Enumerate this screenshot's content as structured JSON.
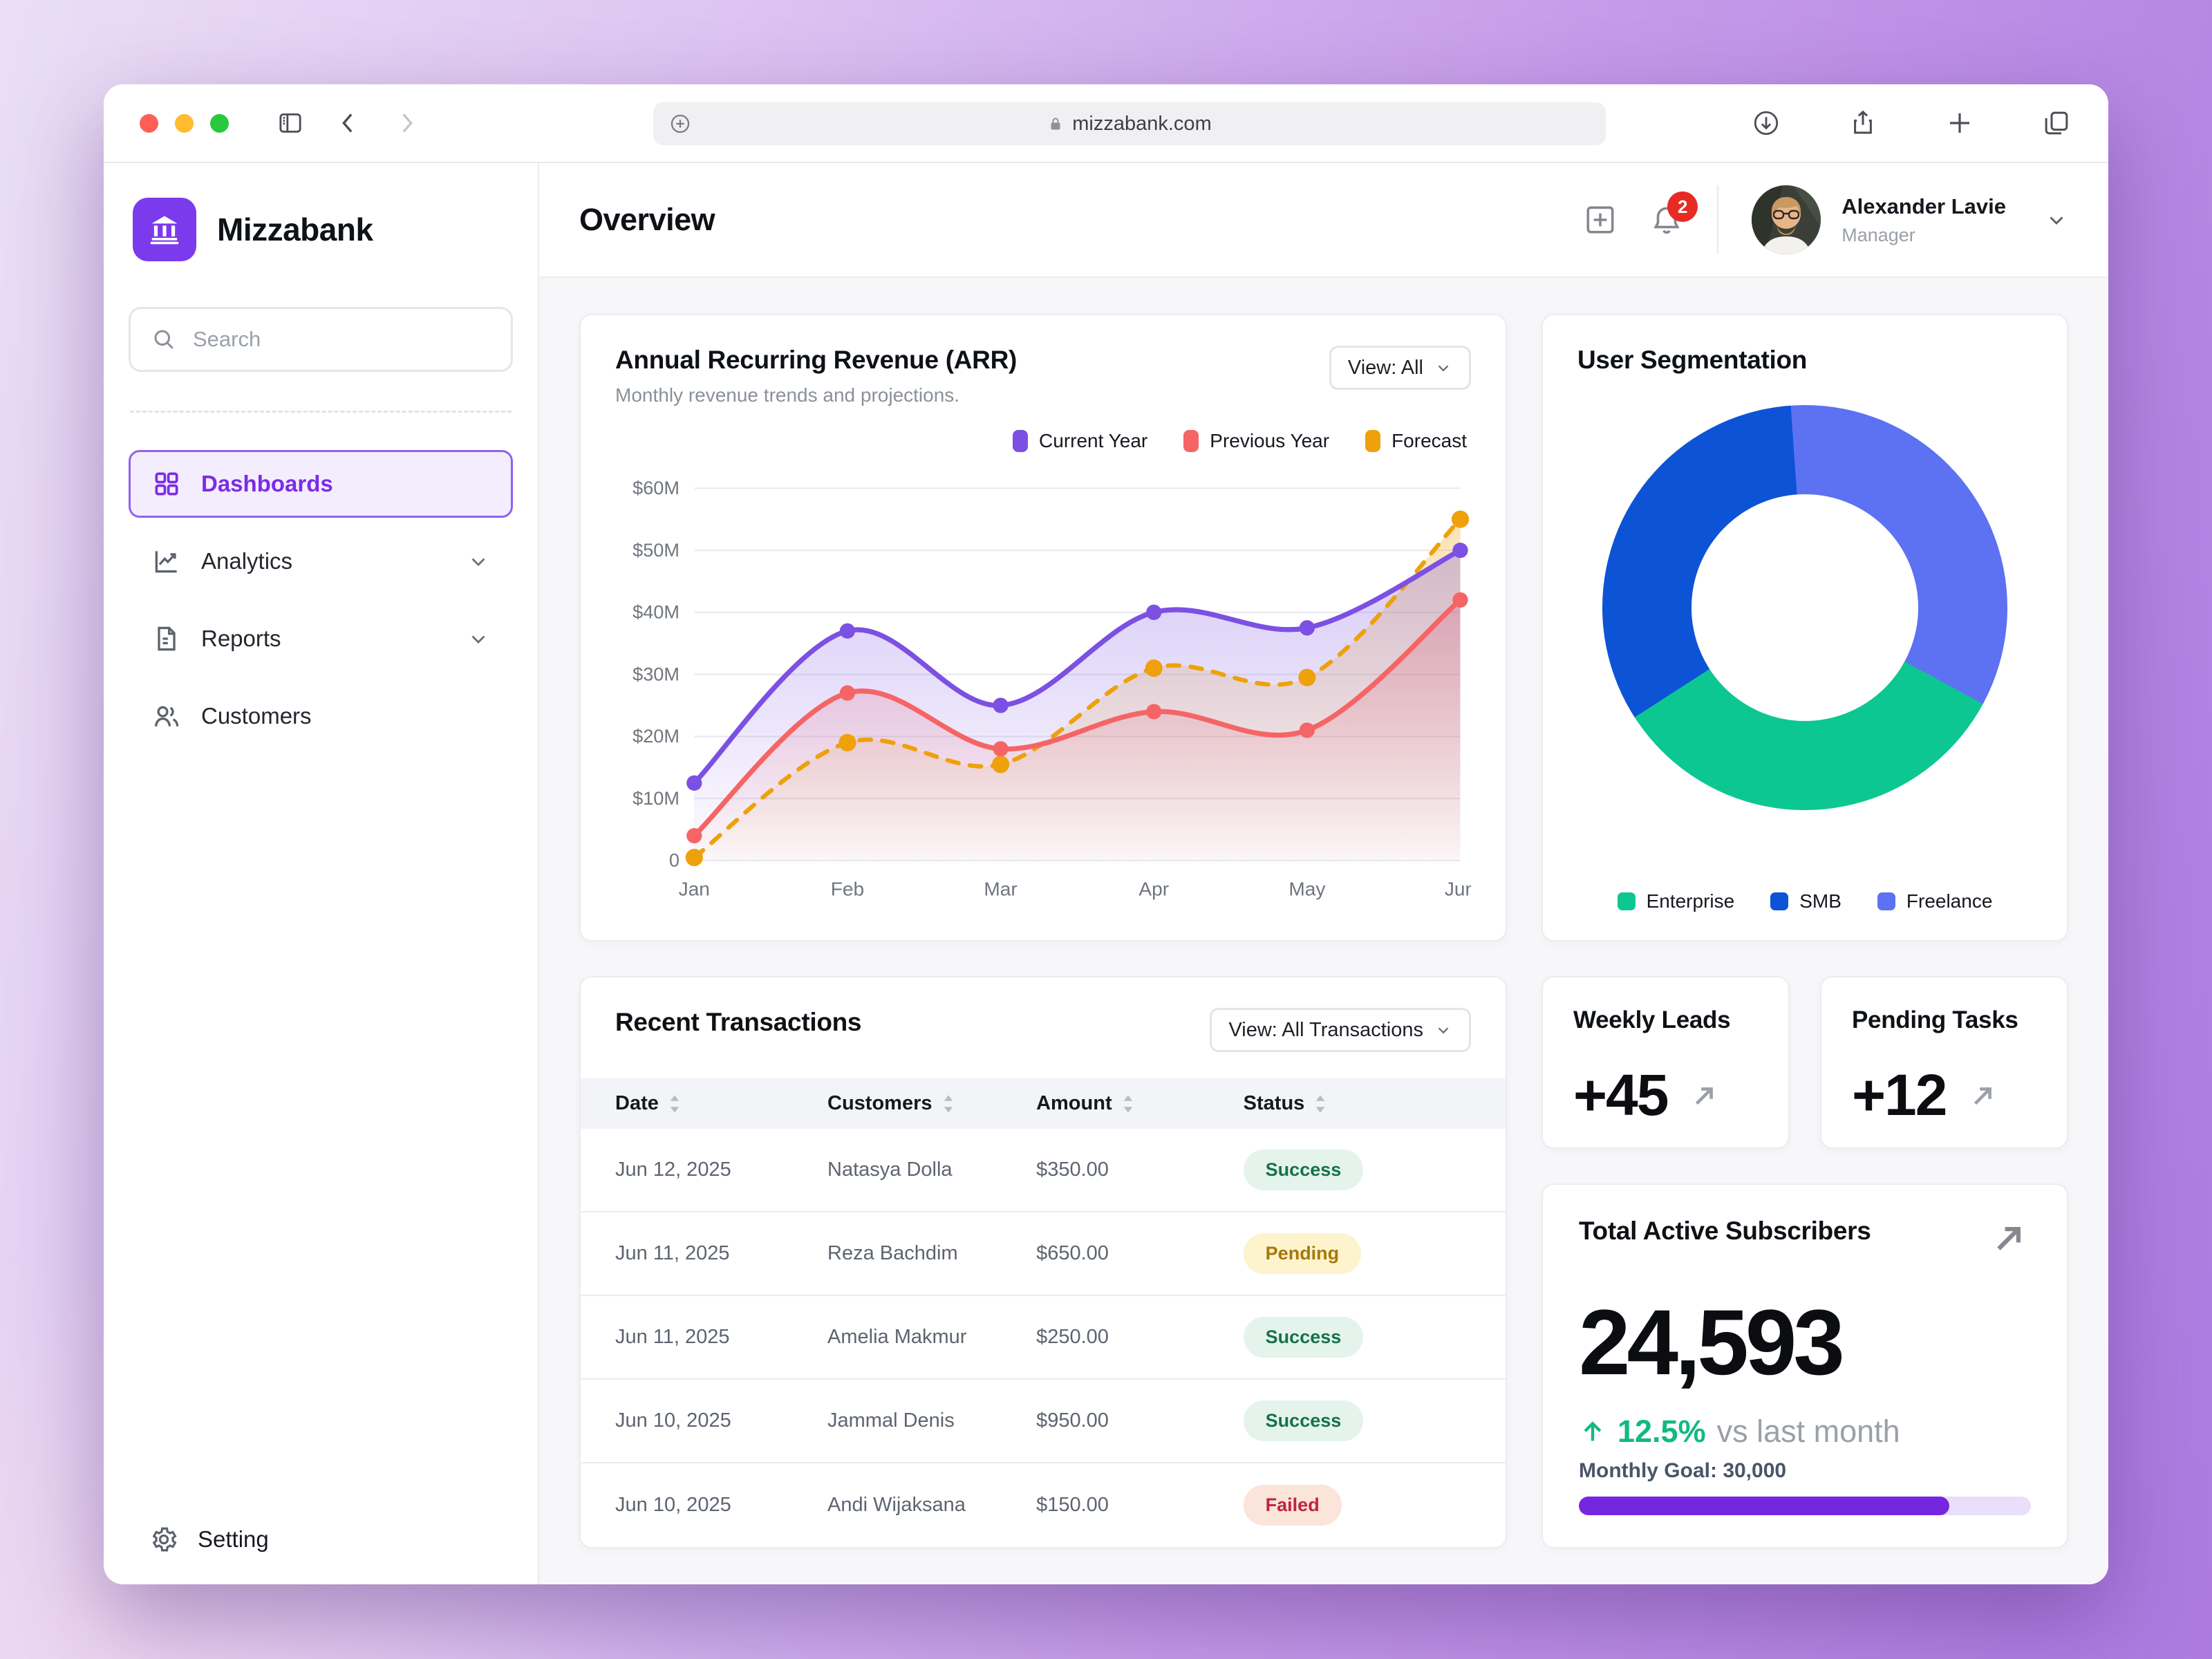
{
  "browser": {
    "url": "mizzabank.com"
  },
  "sidebar": {
    "brand": "Mizzabank",
    "search_placeholder": "Search",
    "items": [
      {
        "label": "Dashboards",
        "active": true
      },
      {
        "label": "Analytics",
        "expandable": true
      },
      {
        "label": "Reports",
        "expandable": true
      },
      {
        "label": "Customers",
        "expandable": false
      }
    ],
    "setting_label": "Setting"
  },
  "header": {
    "title": "Overview",
    "notification_count": "2",
    "user": {
      "name": "Alexander Lavie",
      "role": "Manager"
    }
  },
  "arr_card": {
    "title": "Annual Recurring Revenue (ARR)",
    "subtitle": "Monthly revenue trends and projections.",
    "view_button": "View: All"
  },
  "segmentation_card": {
    "title": "User Segmentation"
  },
  "transactions": {
    "title": "Recent Transactions",
    "view_button": "View: All Transactions",
    "columns": [
      "Date",
      "Customers",
      "Amount",
      "Status"
    ],
    "rows": [
      {
        "date": "Jun 12, 2025",
        "customer": "Natasya Dolla",
        "amount": "$350.00",
        "status": "Success",
        "status_type": "success"
      },
      {
        "date": "Jun 11, 2025",
        "customer": "Reza Bachdim",
        "amount": "$650.00",
        "status": "Pending",
        "status_type": "pending"
      },
      {
        "date": "Jun 11, 2025",
        "customer": "Amelia Makmur",
        "amount": "$250.00",
        "status": "Success",
        "status_type": "success"
      },
      {
        "date": "Jun 10, 2025",
        "customer": "Jammal Denis",
        "amount": "$950.00",
        "status": "Success",
        "status_type": "success"
      },
      {
        "date": "Jun 10, 2025",
        "customer": "Andi Wijaksana",
        "amount": "$150.00",
        "status": "Failed",
        "status_type": "failed"
      }
    ]
  },
  "stats": {
    "weekly_leads": {
      "title": "Weekly Leads",
      "value": "+45"
    },
    "pending_tasks": {
      "title": "Pending Tasks",
      "value": "+12"
    }
  },
  "subscribers": {
    "title": "Total Active Subscribers",
    "value": "24,593",
    "delta": "12.5%",
    "delta_note": "vs last month",
    "goal_label": "Monthly Goal: 30,000",
    "progress_percent": 82
  },
  "chart_data": [
    {
      "type": "line",
      "title": "Annual Recurring Revenue (ARR)",
      "x": [
        "Jan",
        "Feb",
        "Mar",
        "Apr",
        "May",
        "Jun"
      ],
      "ylim": [
        0,
        60
      ],
      "ytick_values": [
        60,
        50,
        40,
        30,
        20,
        10,
        0
      ],
      "ytick_labels": [
        "$60M",
        "$50M",
        "$40M",
        "$30M",
        "$20M",
        "$10M",
        "0"
      ],
      "unit": "millions USD",
      "grid": true,
      "legend_position": "top-right",
      "series": [
        {
          "name": "Current Year",
          "color": "#7b50e2",
          "style": "solid",
          "values": [
            12.5,
            37,
            25,
            40,
            37.5,
            50
          ]
        },
        {
          "name": "Previous Year",
          "color": "#f56565",
          "style": "solid",
          "values": [
            4,
            27,
            18,
            24,
            21,
            42
          ]
        },
        {
          "name": "Forecast",
          "color": "#eea10b",
          "style": "dashed",
          "values": [
            0.5,
            19,
            15.5,
            31,
            29.5,
            55
          ]
        }
      ]
    },
    {
      "type": "donut",
      "title": "User Segmentation",
      "segments": [
        {
          "label": "Enterprise",
          "pct": 33,
          "color": "#0cc792"
        },
        {
          "label": "SMB",
          "pct": 33,
          "color": "#0d53d6"
        },
        {
          "label": "Freelance",
          "pct": 34,
          "color": "#5c72f2"
        }
      ],
      "start_deg": -4,
      "draw_order": [
        2,
        0,
        1
      ]
    }
  ],
  "colors": {
    "accent_purple": "#7c3aed",
    "progress_fill": "#7527e0",
    "delta_green": "#12b981",
    "success_text": "#177149",
    "pending_text": "#a87808",
    "failed_text": "#bf2440"
  }
}
